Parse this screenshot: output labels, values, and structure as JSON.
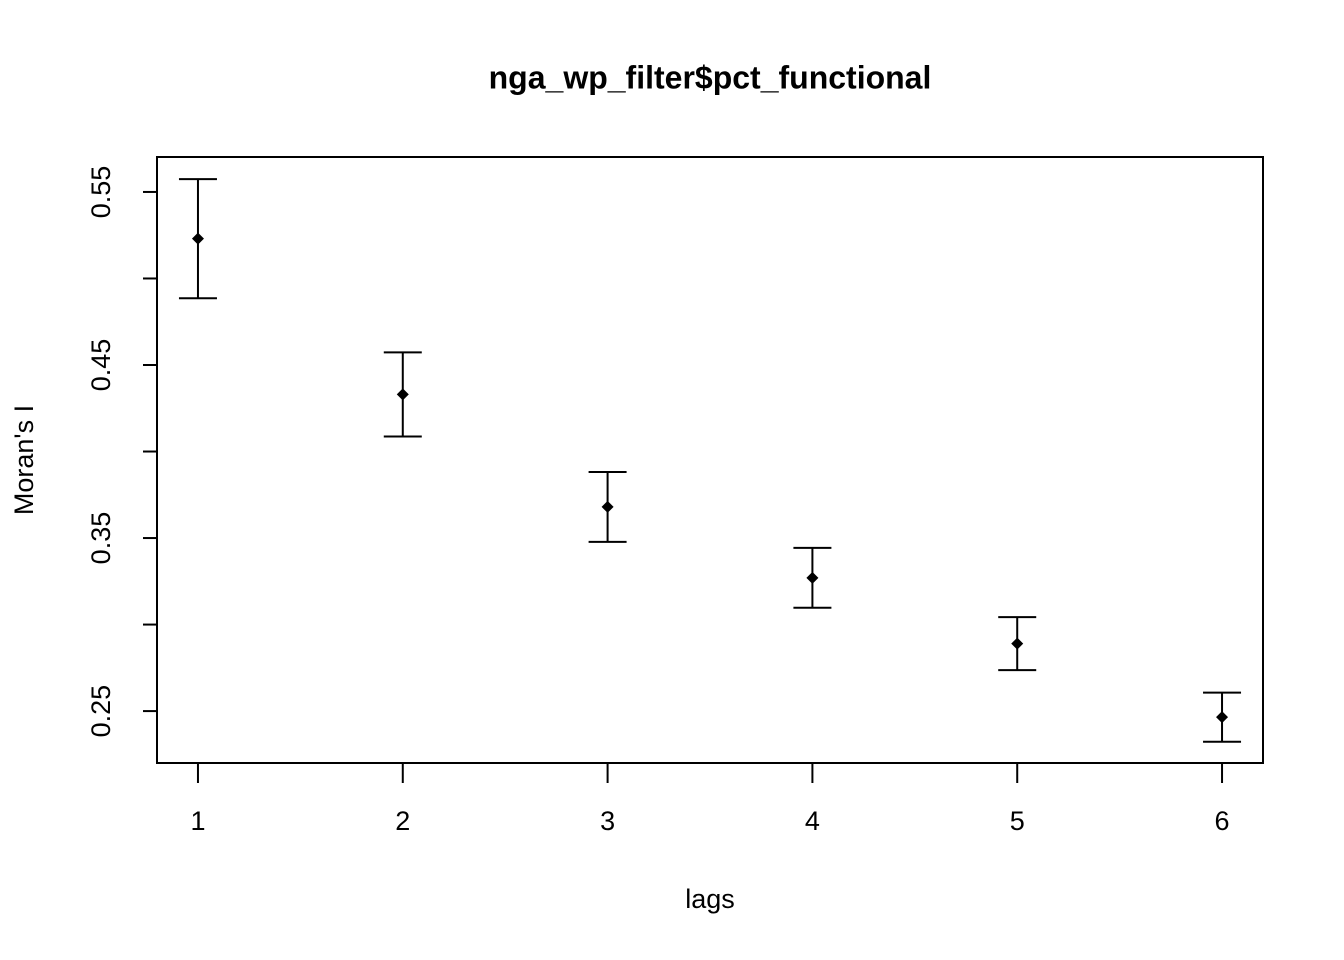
{
  "chart_data": {
    "type": "errorbar",
    "title": "nga_wp_filter$pct_functional",
    "x_label": "lags",
    "y_label": "Moran's  I",
    "x": [
      1,
      2,
      3,
      4,
      5,
      6
    ],
    "values": [
      0.523,
      0.433,
      0.368,
      0.327,
      0.289,
      0.2465
    ],
    "errors": [
      0.0344,
      0.0243,
      0.0202,
      0.0173,
      0.0153,
      0.0142
    ],
    "color": "#000000",
    "xlim": [
      0.8,
      6.2
    ],
    "xticks": [
      1,
      2,
      3,
      4,
      5,
      6
    ],
    "ylim": [
      0.22,
      0.5702
    ],
    "yticks": [
      0.25,
      {
        "value": 0.3,
        "label": null
      },
      0.35,
      {
        "value": 0.4,
        "label": null
      },
      0.45,
      {
        "value": 0.5,
        "label": null
      },
      0.55
    ]
  }
}
